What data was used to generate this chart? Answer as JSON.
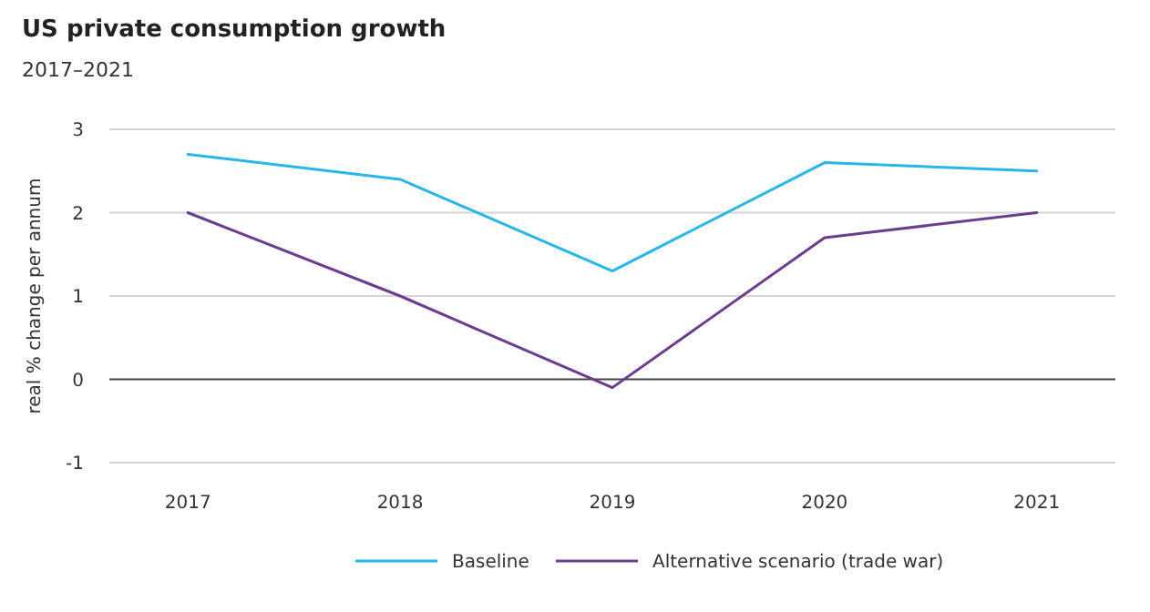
{
  "chart_data": {
    "type": "line",
    "title": "US private consumption growth",
    "subtitle": "2017–2021",
    "ylabel": "real % change per annum",
    "categories": [
      "2017",
      "2018",
      "2019",
      "2020",
      "2021"
    ],
    "series": [
      {
        "name": "Baseline",
        "color": "#29b6e8",
        "values": [
          2.7,
          2.4,
          1.3,
          2.6,
          2.5
        ]
      },
      {
        "name": "Alternative scenario (trade war)",
        "color": "#6a3d8f",
        "values": [
          2.0,
          1.0,
          -0.1,
          1.7,
          2.0
        ]
      }
    ],
    "ylim": [
      -1,
      3
    ],
    "yticks": [
      -1,
      0,
      1,
      2,
      3
    ],
    "grid": "y",
    "legend": "bottom",
    "marker": "none",
    "line_style": "solid"
  }
}
